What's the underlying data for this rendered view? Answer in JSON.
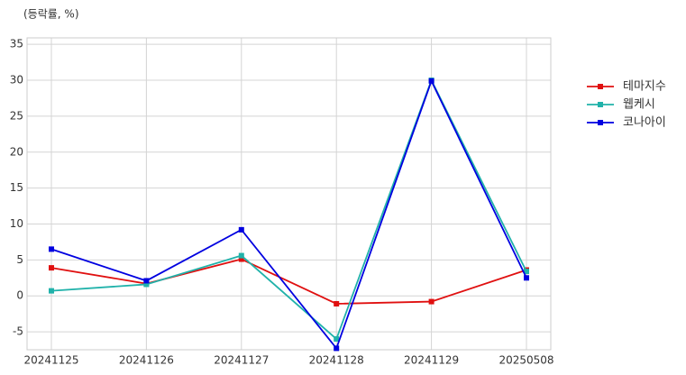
{
  "chart_data": {
    "type": "line",
    "subtitle": "(등락률, %)",
    "categories": [
      "20241125",
      "20241126",
      "20241127",
      "20241128",
      "20241129",
      "20250508"
    ],
    "series": [
      {
        "name": "테마지수",
        "color": "#e01010",
        "values": [
          3.9,
          1.7,
          5.1,
          -1.1,
          -0.8,
          3.6
        ]
      },
      {
        "name": "웹케시",
        "color": "#20b2aa",
        "values": [
          0.7,
          1.6,
          5.6,
          -6.0,
          30.0,
          3.4
        ]
      },
      {
        "name": "코나아이",
        "color": "#0000e0",
        "values": [
          6.5,
          2.1,
          9.2,
          -7.3,
          29.9,
          2.5
        ]
      }
    ],
    "ylim": [
      -7.5,
      35.9
    ],
    "yticks": [
      -5,
      0,
      5,
      10,
      15,
      20,
      25,
      30,
      35
    ],
    "grid": true,
    "legend": "right"
  }
}
